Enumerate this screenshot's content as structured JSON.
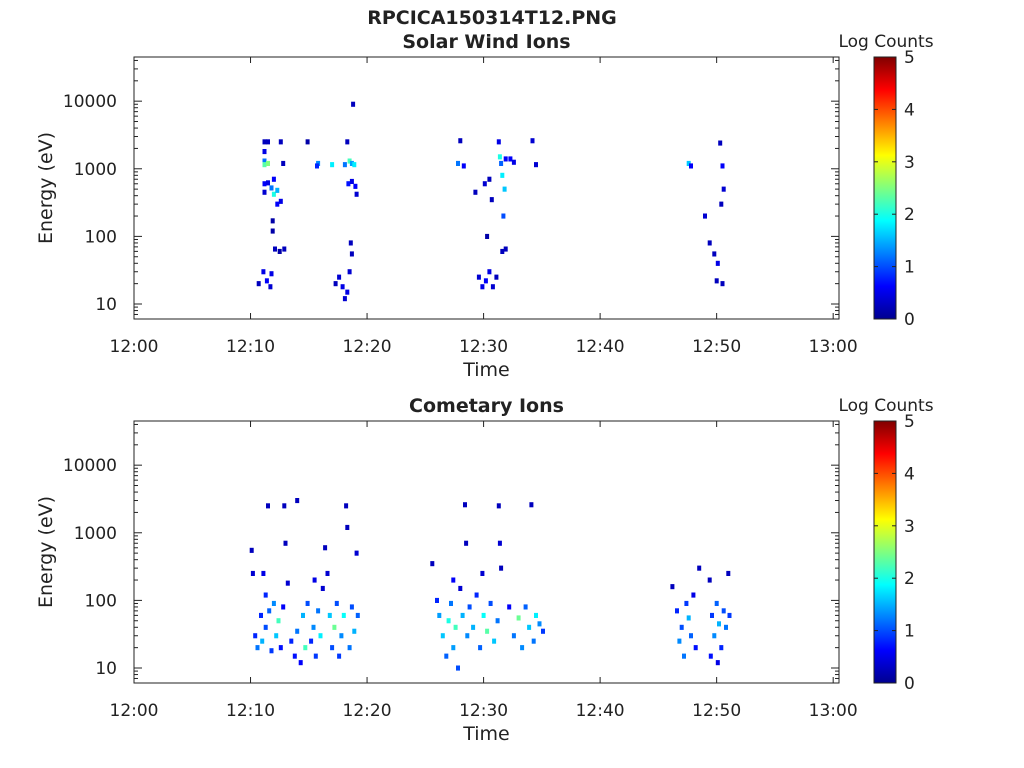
{
  "figure": {
    "title": "RPCICA150314T12.PNG"
  },
  "colors": {
    "axis": "#222222",
    "background": "#ffffff"
  },
  "colorbar": {
    "label": "Log Counts",
    "range": [
      0,
      5
    ],
    "ticks": [
      "0",
      "1",
      "2",
      "3",
      "4",
      "5"
    ],
    "colormap": "jet"
  },
  "chart_data": [
    {
      "type": "heatmap",
      "title": "Solar Wind Ions",
      "xlabel": "Time",
      "ylabel": "Energy (eV)",
      "x_ticks": [
        "12:00",
        "12:10",
        "12:20",
        "12:30",
        "12:40",
        "12:50",
        "13:00"
      ],
      "x_range_minutes": [
        0,
        60.5
      ],
      "y_scale": "log",
      "y_range": [
        6,
        45000
      ],
      "y_ticks": [
        10,
        100,
        1000,
        10000
      ],
      "y_tick_labels": [
        "10",
        "100",
        "1000",
        "10000"
      ],
      "grid": false,
      "color_scale": "Log Counts",
      "cells": [
        [
          11.2,
          2500,
          0.3
        ],
        [
          11.2,
          1800,
          0.5
        ],
        [
          11.2,
          1300,
          1.2
        ],
        [
          11.2,
          1150,
          2.3
        ],
        [
          11.2,
          600,
          0.6
        ],
        [
          11.2,
          450,
          0.4
        ],
        [
          11.5,
          2500,
          0.3
        ],
        [
          11.5,
          1200,
          2.5
        ],
        [
          11.5,
          620,
          0.5
        ],
        [
          11.8,
          520,
          1.2
        ],
        [
          12.0,
          700,
          0.6
        ],
        [
          12.0,
          420,
          2.0
        ],
        [
          12.3,
          480,
          1.5
        ],
        [
          12.3,
          300,
          0.6
        ],
        [
          12.6,
          330,
          0.5
        ],
        [
          11.9,
          170,
          0.2
        ],
        [
          11.9,
          120,
          0.2
        ],
        [
          12.1,
          65,
          0.3
        ],
        [
          12.5,
          60,
          0.2
        ],
        [
          10.7,
          20,
          0.3
        ],
        [
          11.1,
          30,
          0.5
        ],
        [
          11.4,
          22,
          0.6
        ],
        [
          11.7,
          18,
          0.4
        ],
        [
          11.8,
          28,
          0.5
        ],
        [
          12.9,
          65,
          0.3
        ],
        [
          12.6,
          2500,
          0.3
        ],
        [
          12.8,
          1200,
          0.3
        ],
        [
          14.9,
          2500,
          0.2
        ],
        [
          15.8,
          1200,
          1.3
        ],
        [
          15.7,
          1100,
          0.8
        ],
        [
          17.0,
          1150,
          1.8
        ],
        [
          17.3,
          20,
          0.3
        ],
        [
          17.6,
          25,
          0.4
        ],
        [
          17.9,
          18,
          0.5
        ],
        [
          18.1,
          12,
          0.4
        ],
        [
          18.3,
          15,
          0.5
        ],
        [
          18.5,
          30,
          0.4
        ],
        [
          18.7,
          55,
          0.3
        ],
        [
          18.1,
          1150,
          1.2
        ],
        [
          18.3,
          2500,
          0.3
        ],
        [
          18.5,
          1300,
          2.2
        ],
        [
          18.7,
          1200,
          1.4
        ],
        [
          18.9,
          1150,
          1.8
        ],
        [
          18.4,
          600,
          0.7
        ],
        [
          18.7,
          650,
          0.5
        ],
        [
          19.0,
          550,
          0.6
        ],
        [
          19.1,
          420,
          0.4
        ],
        [
          18.8,
          9000,
          0.3
        ],
        [
          18.6,
          80,
          0.3
        ],
        [
          27.8,
          1200,
          1.2
        ],
        [
          28.0,
          2600,
          0.3
        ],
        [
          28.3,
          1100,
          0.6
        ],
        [
          29.3,
          450,
          0.3
        ],
        [
          29.6,
          25,
          0.4
        ],
        [
          29.9,
          18,
          0.5
        ],
        [
          30.2,
          22,
          0.6
        ],
        [
          30.5,
          30,
          0.5
        ],
        [
          30.8,
          18,
          0.4
        ],
        [
          31.1,
          25,
          0.3
        ],
        [
          30.3,
          100,
          0.2
        ],
        [
          30.1,
          600,
          0.4
        ],
        [
          30.5,
          700,
          0.3
        ],
        [
          30.7,
          350,
          0.3
        ],
        [
          31.3,
          2500,
          0.5
        ],
        [
          31.4,
          1500,
          2.0
        ],
        [
          31.5,
          1200,
          1.1
        ],
        [
          31.6,
          800,
          1.8
        ],
        [
          31.8,
          500,
          1.6
        ],
        [
          31.7,
          200,
          1.0
        ],
        [
          31.6,
          60,
          0.3
        ],
        [
          31.9,
          65,
          0.3
        ],
        [
          31.9,
          1400,
          0.6
        ],
        [
          32.3,
          1400,
          0.6
        ],
        [
          32.6,
          1250,
          0.5
        ],
        [
          34.2,
          2600,
          0.4
        ],
        [
          34.5,
          1150,
          0.4
        ],
        [
          47.6,
          1200,
          1.6
        ],
        [
          47.8,
          1100,
          0.6
        ],
        [
          49.0,
          200,
          0.4
        ],
        [
          49.4,
          80,
          0.3
        ],
        [
          49.8,
          55,
          0.3
        ],
        [
          50.1,
          40,
          0.5
        ],
        [
          50.3,
          2400,
          0.3
        ],
        [
          50.5,
          1100,
          0.6
        ],
        [
          50.6,
          500,
          0.4
        ],
        [
          50.4,
          300,
          0.3
        ],
        [
          50.5,
          20,
          0.3
        ],
        [
          50.0,
          22,
          0.3
        ]
      ]
    },
    {
      "type": "heatmap",
      "title": "Cometary Ions",
      "xlabel": "Time",
      "ylabel": "Energy (eV)",
      "x_ticks": [
        "12:00",
        "12:10",
        "12:20",
        "12:30",
        "12:40",
        "12:50",
        "13:00"
      ],
      "x_range_minutes": [
        0,
        60.5
      ],
      "y_scale": "log",
      "y_range": [
        6,
        45000
      ],
      "y_ticks": [
        10,
        100,
        1000,
        10000
      ],
      "y_tick_labels": [
        "10",
        "100",
        "1000",
        "10000"
      ],
      "grid": false,
      "color_scale": "Log Counts",
      "cells": [
        [
          10.1,
          550,
          0.3
        ],
        [
          10.2,
          250,
          0.4
        ],
        [
          10.4,
          30,
          0.8
        ],
        [
          10.6,
          20,
          1.2
        ],
        [
          10.9,
          60,
          0.8
        ],
        [
          11.0,
          25,
          1.5
        ],
        [
          11.3,
          40,
          1.0
        ],
        [
          11.5,
          2500,
          0.3
        ],
        [
          11.6,
          70,
          1.1
        ],
        [
          11.8,
          18,
          0.9
        ],
        [
          12.0,
          90,
          1.3
        ],
        [
          12.2,
          30,
          1.6
        ],
        [
          12.4,
          50,
          2.2
        ],
        [
          12.6,
          20,
          0.7
        ],
        [
          12.8,
          80,
          0.6
        ],
        [
          12.9,
          2500,
          0.3
        ],
        [
          13.0,
          700,
          0.3
        ],
        [
          11.1,
          250,
          0.5
        ],
        [
          11.3,
          120,
          0.8
        ],
        [
          13.5,
          25,
          0.8
        ],
        [
          13.8,
          15,
          0.7
        ],
        [
          14.0,
          35,
          1.2
        ],
        [
          14.3,
          12,
          0.6
        ],
        [
          14.5,
          60,
          1.5
        ],
        [
          14.7,
          20,
          2.2
        ],
        [
          14.9,
          90,
          1.0
        ],
        [
          15.2,
          25,
          0.8
        ],
        [
          15.4,
          40,
          1.3
        ],
        [
          15.6,
          15,
          0.9
        ],
        [
          15.8,
          70,
          1.2
        ],
        [
          16.0,
          30,
          1.8
        ],
        [
          16.4,
          600,
          0.3
        ],
        [
          16.6,
          250,
          0.4
        ],
        [
          16.8,
          60,
          1.6
        ],
        [
          17.0,
          20,
          1.0
        ],
        [
          17.2,
          40,
          2.4
        ],
        [
          17.4,
          90,
          1.0
        ],
        [
          17.6,
          15,
          0.9
        ],
        [
          17.8,
          30,
          1.3
        ],
        [
          18.0,
          60,
          1.9
        ],
        [
          18.2,
          2500,
          0.3
        ],
        [
          18.3,
          1200,
          0.3
        ],
        [
          18.5,
          20,
          1.2
        ],
        [
          18.7,
          80,
          1.0
        ],
        [
          18.9,
          35,
          1.5
        ],
        [
          19.1,
          500,
          0.4
        ],
        [
          19.2,
          60,
          1.1
        ],
        [
          14.0,
          3000,
          0.3
        ],
        [
          13.2,
          180,
          0.4
        ],
        [
          15.5,
          200,
          0.5
        ],
        [
          16.2,
          150,
          0.4
        ],
        [
          25.6,
          350,
          0.3
        ],
        [
          26.0,
          100,
          0.8
        ],
        [
          26.2,
          60,
          1.4
        ],
        [
          26.5,
          30,
          1.6
        ],
        [
          26.8,
          15,
          1.1
        ],
        [
          27.0,
          50,
          2.0
        ],
        [
          27.2,
          90,
          1.2
        ],
        [
          27.4,
          20,
          1.4
        ],
        [
          27.6,
          40,
          2.2
        ],
        [
          27.8,
          10,
          1.0
        ],
        [
          28.0,
          150,
          0.4
        ],
        [
          28.2,
          60,
          1.5
        ],
        [
          28.4,
          2600,
          0.3
        ],
        [
          28.5,
          700,
          0.3
        ],
        [
          28.6,
          30,
          1.3
        ],
        [
          28.8,
          80,
          1.0
        ],
        [
          29.1,
          40,
          1.5
        ],
        [
          29.4,
          120,
          0.8
        ],
        [
          29.7,
          20,
          1.1
        ],
        [
          30.0,
          60,
          1.9
        ],
        [
          30.3,
          35,
          2.3
        ],
        [
          30.6,
          90,
          1.0
        ],
        [
          30.9,
          25,
          1.6
        ],
        [
          31.2,
          50,
          1.2
        ],
        [
          31.4,
          700,
          0.4
        ],
        [
          31.5,
          300,
          0.3
        ],
        [
          31.3,
          2500,
          0.3
        ],
        [
          32.2,
          80,
          0.6
        ],
        [
          32.6,
          30,
          1.2
        ],
        [
          33.0,
          55,
          2.4
        ],
        [
          33.3,
          20,
          1.3
        ],
        [
          33.6,
          80,
          1.1
        ],
        [
          33.9,
          40,
          1.6
        ],
        [
          34.1,
          2600,
          0.3
        ],
        [
          34.3,
          25,
          1.2
        ],
        [
          34.5,
          60,
          1.8
        ],
        [
          34.8,
          45,
          1.3
        ],
        [
          35.1,
          35,
          0.9
        ],
        [
          27.4,
          200,
          0.6
        ],
        [
          29.9,
          250,
          0.4
        ],
        [
          46.2,
          160,
          0.3
        ],
        [
          46.6,
          70,
          0.8
        ],
        [
          46.8,
          25,
          1.3
        ],
        [
          47.0,
          40,
          1.0
        ],
        [
          47.2,
          15,
          1.2
        ],
        [
          47.4,
          90,
          0.9
        ],
        [
          47.6,
          55,
          1.5
        ],
        [
          47.8,
          30,
          1.1
        ],
        [
          48.0,
          120,
          0.5
        ],
        [
          48.2,
          20,
          0.7
        ],
        [
          48.5,
          300,
          0.3
        ],
        [
          49.4,
          200,
          0.3
        ],
        [
          49.6,
          60,
          0.9
        ],
        [
          49.8,
          30,
          1.3
        ],
        [
          50.0,
          90,
          1.1
        ],
        [
          50.2,
          45,
          1.5
        ],
        [
          50.4,
          20,
          0.8
        ],
        [
          50.6,
          70,
          1.0
        ],
        [
          50.8,
          40,
          1.2
        ],
        [
          51.0,
          250,
          0.3
        ],
        [
          51.1,
          60,
          0.9
        ],
        [
          49.5,
          15,
          0.7
        ],
        [
          50.1,
          12,
          0.5
        ]
      ]
    }
  ]
}
